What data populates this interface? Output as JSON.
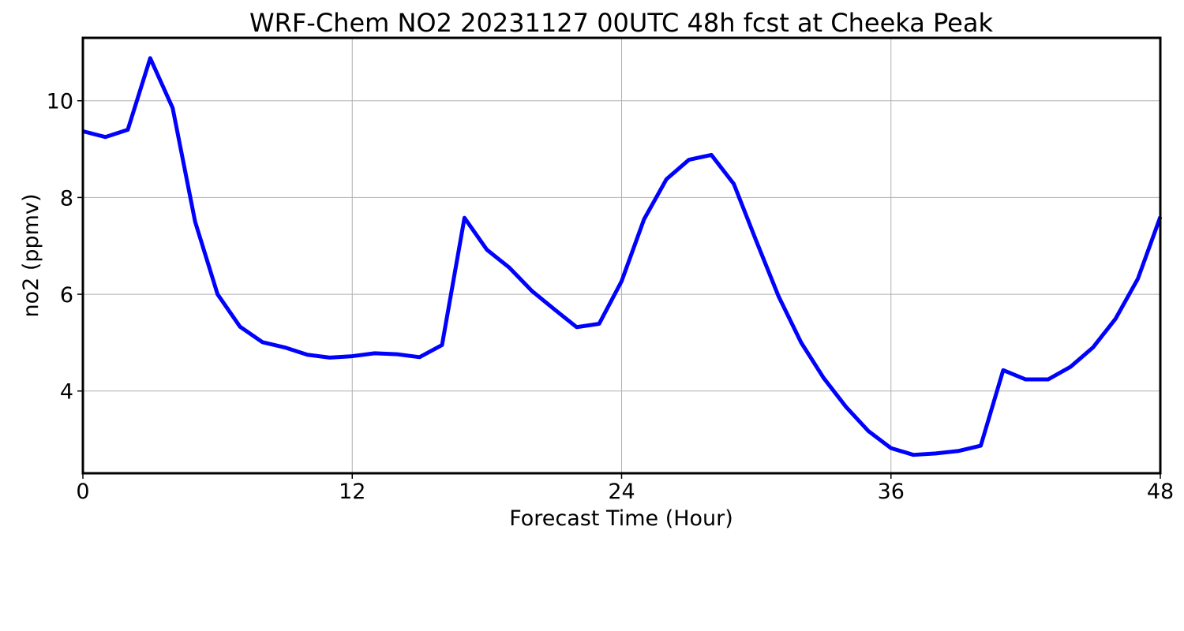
{
  "chart_data": {
    "type": "line",
    "title": "WRF-Chem NO2  20231127 00UTC 48h fcst at Cheeka Peak",
    "xlabel": "Forecast Time (Hour)",
    "ylabel": "no2  (ppmv)",
    "xlim": [
      0,
      48
    ],
    "ylim": [
      2.3,
      11.3
    ],
    "xticks": [
      0,
      12,
      24,
      36,
      48
    ],
    "yticks": [
      4,
      6,
      8,
      10
    ],
    "grid": true,
    "series": [
      {
        "color": "#0000ff",
        "x": [
          0,
          1,
          2,
          3,
          4,
          5,
          6,
          7,
          8,
          9,
          10,
          11,
          12,
          13,
          14,
          15,
          16,
          17,
          18,
          19,
          20,
          21,
          22,
          23,
          24,
          25,
          26,
          27,
          28,
          29,
          30,
          31,
          32,
          33,
          34,
          35,
          36,
          37,
          38,
          39,
          40,
          41,
          42,
          43,
          44,
          45,
          46,
          47,
          48
        ],
        "y": [
          9.37,
          9.25,
          9.4,
          10.88,
          9.85,
          7.5,
          6.0,
          5.33,
          5.01,
          4.9,
          4.75,
          4.69,
          4.72,
          4.78,
          4.76,
          4.7,
          4.95,
          7.58,
          6.92,
          6.55,
          6.07,
          5.69,
          5.32,
          5.39,
          6.27,
          7.55,
          8.38,
          8.78,
          8.88,
          8.28,
          7.1,
          5.95,
          5.0,
          4.27,
          3.67,
          3.17,
          2.82,
          2.68,
          2.71,
          2.76,
          2.87,
          4.43,
          4.24,
          4.24,
          4.5,
          4.9,
          5.49,
          6.32,
          7.6
        ]
      }
    ]
  }
}
